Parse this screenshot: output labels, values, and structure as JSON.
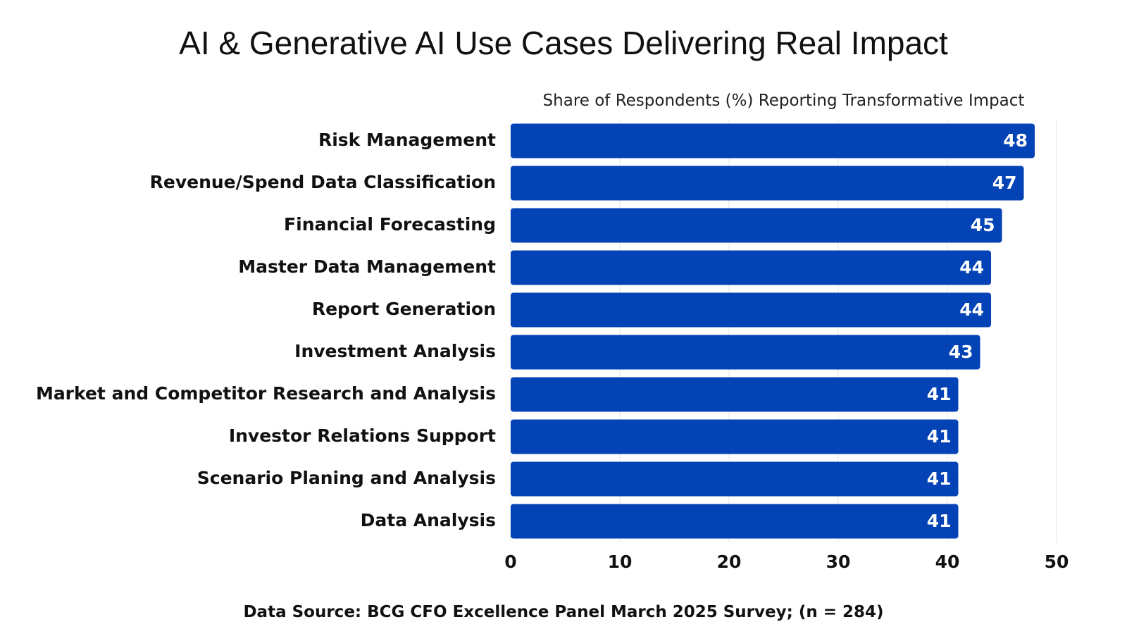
{
  "chart_data": {
    "type": "bar",
    "orientation": "horizontal",
    "title": "AI & Generative AI Use Cases Delivering Real Impact",
    "subtitle": "Share of Respondents (%) Reporting Transformative Impact",
    "categories": [
      "Risk Management",
      "Revenue/Spend Data Classification",
      "Financial Forecasting",
      "Master Data Management",
      "Report Generation",
      "Investment Analysis",
      "Market and Competitor Research and Analysis",
      "Investor Relations Support",
      "Scenario Planing and Analysis",
      "Data Analysis"
    ],
    "values": [
      48,
      47,
      45,
      44,
      44,
      43,
      41,
      41,
      41,
      41
    ],
    "xlabel": "",
    "ylabel": "",
    "xlim": [
      0,
      50
    ],
    "xticks": [
      0,
      10,
      20,
      30,
      40,
      50
    ],
    "grid": true,
    "data_labels": true,
    "bar_color": "#0443b5",
    "source": "Data Source: BCG CFO Excellence Panel March 2025 Survey; (n = 284)"
  }
}
